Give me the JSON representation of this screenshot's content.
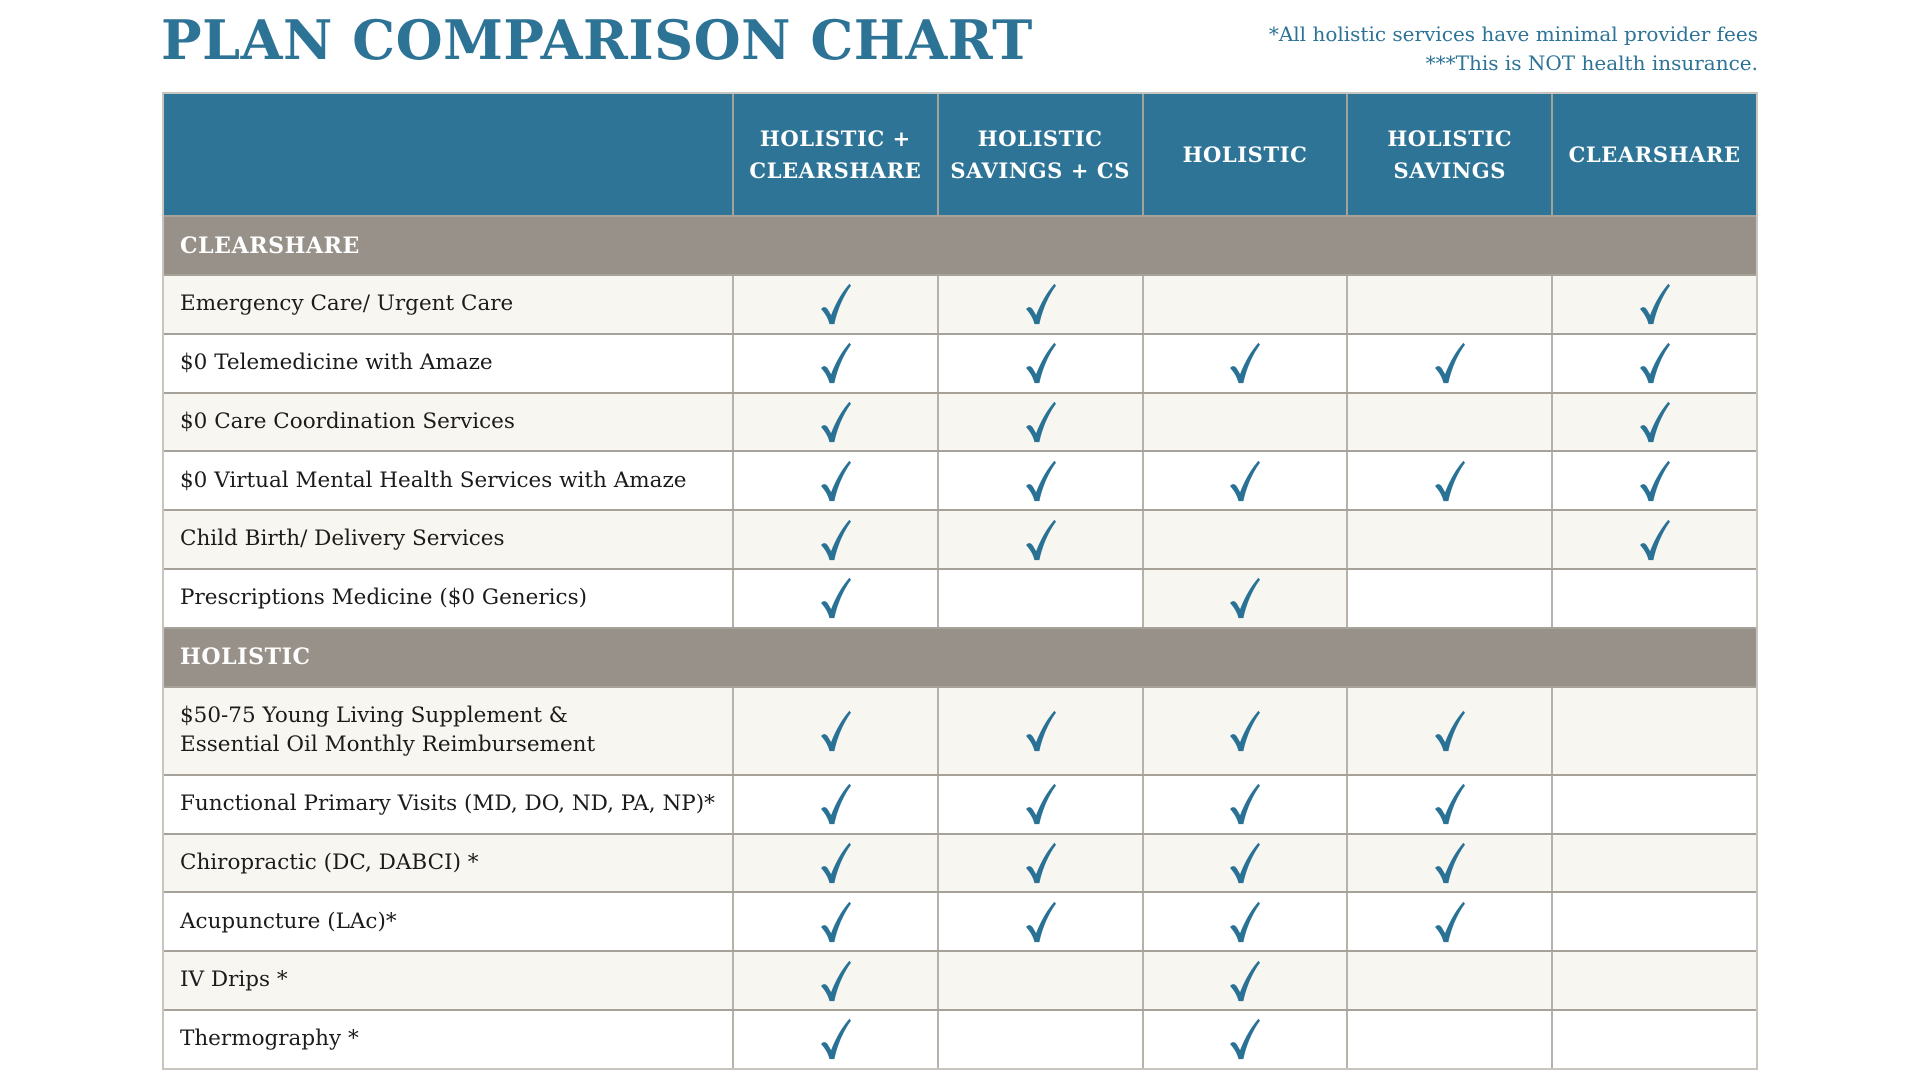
{
  "title": "PLAN COMPARISON CHART",
  "notes": [
    "*All holistic services have minimal provider fees",
    "***This is NOT health insurance."
  ],
  "colors": {
    "page_bg": "#FFFFFF",
    "accent": "#2D7396",
    "header_bg": "#2E7496",
    "header_text": "#FFFFFF",
    "section_bg": "#97918A",
    "row_bg": "#FFFFFF",
    "row_alt_bg": "#F8F6F0",
    "check": "#2A7295",
    "grid_line": "#A6A29A",
    "grid_line_v": "#B6B2AA",
    "outer_border": "#C8C5BF",
    "label_text": "#1B1B1B"
  },
  "icons": {
    "check": "check-icon"
  },
  "chart_data": {
    "type": "table",
    "title": "PLAN COMPARISON CHART",
    "legend_notes": [
      "*All holistic services have minimal provider fees",
      "***This is NOT health insurance."
    ],
    "columns": [
      "HOLISTIC +\nCLEARSHARE",
      "HOLISTIC\nSAVINGS + CS",
      "HOLISTIC",
      "HOLISTIC\nSAVINGS",
      "CLEARSHARE"
    ],
    "rows": [
      {
        "kind": "section",
        "label": "CLEARSHARE"
      },
      {
        "kind": "item",
        "label": "Emergency Care/ Urgent Care",
        "checks": [
          1,
          1,
          0,
          0,
          1
        ]
      },
      {
        "kind": "item",
        "label": "$0 Telemedicine with Amaze",
        "checks": [
          1,
          1,
          1,
          1,
          1
        ]
      },
      {
        "kind": "item",
        "label": "$0 Care Coordination Services",
        "checks": [
          1,
          1,
          0,
          0,
          1
        ]
      },
      {
        "kind": "item",
        "label": "$0 Virtual Mental Health Services with Amaze",
        "checks": [
          1,
          1,
          1,
          1,
          1
        ]
      },
      {
        "kind": "item",
        "label": "Child Birth/ Delivery Services",
        "checks": [
          1,
          1,
          0,
          0,
          1
        ]
      },
      {
        "kind": "item",
        "label": "Prescriptions Medicine ($0 Generics)",
        "checks": [
          1,
          0,
          1,
          0,
          0
        ],
        "tinted_cells": [
          0,
          0,
          1,
          0,
          0
        ]
      },
      {
        "kind": "section",
        "label": "HOLISTIC"
      },
      {
        "kind": "item",
        "label": "$50-75 Young Living Supplement &\nEssential Oil Monthly Reimbursement",
        "checks": [
          1,
          1,
          1,
          1,
          0
        ],
        "tall": true
      },
      {
        "kind": "item",
        "label": "Functional Primary Visits (MD, DO, ND, PA, NP)*",
        "checks": [
          1,
          1,
          1,
          1,
          0
        ]
      },
      {
        "kind": "item",
        "label": "Chiropractic (DC, DABCI) *",
        "checks": [
          1,
          1,
          1,
          1,
          0
        ]
      },
      {
        "kind": "item",
        "label": "Acupuncture (LAc)*",
        "checks": [
          1,
          1,
          1,
          1,
          0
        ]
      },
      {
        "kind": "item",
        "label": "IV Drips *",
        "checks": [
          1,
          0,
          1,
          0,
          0
        ]
      },
      {
        "kind": "item",
        "label": "Thermography *",
        "checks": [
          1,
          0,
          1,
          0,
          0
        ]
      }
    ]
  }
}
